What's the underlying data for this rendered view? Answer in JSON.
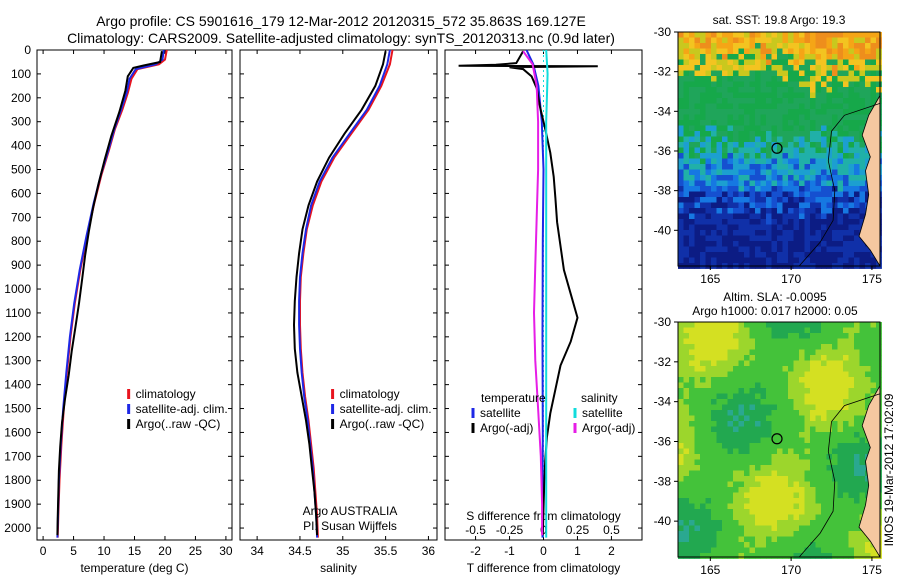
{
  "header": {
    "line1": "Argo profile: CS 5901616_179 12-Mar-2012 20120315_572 35.863S 169.127E",
    "line2": "Climatology: CARS2009. Satellite-adjusted climatology: synTS_20120313.nc (0.9d later)"
  },
  "side_stamp": "IMOS 19-Mar-2012 17:02:09",
  "colors": {
    "red": "#e8141e",
    "blue": "#1e28e6",
    "black": "#000000",
    "cyan": "#12dcdc",
    "magenta": "#e61ee6"
  },
  "chart_data": [
    {
      "id": "temperature",
      "type": "line",
      "xlabel": "temperature (deg C)",
      "ylabel": "",
      "xlim": [
        -1,
        31
      ],
      "ylim": [
        2050,
        0
      ],
      "xticks": [
        0,
        5,
        10,
        15,
        20,
        25,
        30
      ],
      "xticklabels": [
        "0",
        "5",
        "10",
        "15",
        "20",
        "25",
        "30"
      ],
      "yticks": [
        0,
        100,
        200,
        300,
        400,
        500,
        600,
        700,
        800,
        900,
        1000,
        1100,
        1200,
        1300,
        1400,
        1500,
        1600,
        1700,
        1800,
        1900,
        2000
      ],
      "yticklabels": [
        "0",
        "100",
        "200",
        "300",
        "400",
        "500",
        "600",
        "700",
        "800",
        "900",
        "1000",
        "1100",
        "1200",
        "1300",
        "1400",
        "1500",
        "1600",
        "1700",
        "1800",
        "1900",
        "2000"
      ],
      "legend": [
        "climatology",
        "satellite-adj. clim.",
        "Argo(..raw -QC)"
      ],
      "legend_placement": "bottom-center",
      "series": [
        {
          "name": "climatology",
          "color": "#e8141e",
          "points": [
            [
              20.3,
              0
            ],
            [
              20.0,
              40
            ],
            [
              19.0,
              60
            ],
            [
              15.5,
              80
            ],
            [
              14.5,
              120
            ],
            [
              13.9,
              180
            ],
            [
              13.0,
              250
            ],
            [
              11.8,
              330
            ],
            [
              10.8,
              420
            ],
            [
              9.6,
              520
            ],
            [
              8.4,
              640
            ],
            [
              7.2,
              780
            ],
            [
              6.1,
              920
            ],
            [
              5.2,
              1060
            ],
            [
              4.5,
              1200
            ],
            [
              3.9,
              1350
            ],
            [
              3.4,
              1500
            ],
            [
              3.0,
              1650
            ],
            [
              2.7,
              1800
            ],
            [
              2.5,
              1950
            ],
            [
              2.4,
              2040
            ]
          ]
        },
        {
          "name": "satellite-adj. clim.",
          "color": "#1e28e6",
          "points": [
            [
              19.8,
              0
            ],
            [
              19.6,
              40
            ],
            [
              18.5,
              60
            ],
            [
              15.2,
              80
            ],
            [
              14.2,
              120
            ],
            [
              13.7,
              180
            ],
            [
              12.8,
              250
            ],
            [
              11.7,
              330
            ],
            [
              10.7,
              420
            ],
            [
              9.5,
              520
            ],
            [
              8.3,
              640
            ],
            [
              7.1,
              780
            ],
            [
              6.0,
              920
            ],
            [
              5.1,
              1060
            ],
            [
              4.4,
              1200
            ],
            [
              3.8,
              1350
            ],
            [
              3.3,
              1500
            ],
            [
              2.9,
              1650
            ],
            [
              2.6,
              1800
            ],
            [
              2.45,
              1950
            ],
            [
              2.35,
              2040
            ]
          ]
        },
        {
          "name": "Argo(..raw -QC)",
          "color": "#000000",
          "points": [
            [
              19.5,
              5
            ],
            [
              19.2,
              50
            ],
            [
              16.5,
              65
            ],
            [
              14.8,
              75
            ],
            [
              13.9,
              110
            ],
            [
              13.5,
              170
            ],
            [
              12.5,
              260
            ],
            [
              11.2,
              360
            ],
            [
              10.1,
              460
            ],
            [
              9.1,
              560
            ],
            [
              8.2,
              660
            ],
            [
              7.5,
              760
            ],
            [
              6.9,
              860
            ],
            [
              6.4,
              960
            ],
            [
              5.9,
              1060
            ],
            [
              5.3,
              1160
            ],
            [
              4.7,
              1260
            ],
            [
              4.2,
              1360
            ],
            [
              3.6,
              1460
            ],
            [
              3.1,
              1560
            ],
            [
              2.8,
              1660
            ],
            [
              2.6,
              1760
            ],
            [
              2.5,
              1860
            ],
            [
              2.4,
              1960
            ],
            [
              2.35,
              2030
            ]
          ]
        }
      ]
    },
    {
      "id": "salinity",
      "type": "line",
      "xlabel": "salinity",
      "xlim": [
        33.8,
        36.1
      ],
      "ylim": [
        2050,
        0
      ],
      "xticks": [
        34,
        34.5,
        35,
        35.5,
        36
      ],
      "xticklabels": [
        "34",
        "34.5",
        "35",
        "35.5",
        "36"
      ],
      "legend": [
        "climatology",
        "satellite-adj. clim.",
        "Argo(..raw -QC)"
      ],
      "legend_placement": "bottom-center",
      "annotation": [
        "Argo AUSTRALIA",
        "PI: Susan Wijffels"
      ],
      "series": [
        {
          "name": "climatology",
          "color": "#e8141e",
          "points": [
            [
              35.58,
              0
            ],
            [
              35.55,
              60
            ],
            [
              35.45,
              150
            ],
            [
              35.3,
              250
            ],
            [
              35.1,
              350
            ],
            [
              34.9,
              450
            ],
            [
              34.75,
              550
            ],
            [
              34.65,
              650
            ],
            [
              34.58,
              750
            ],
            [
              34.54,
              850
            ],
            [
              34.51,
              950
            ],
            [
              34.5,
              1050
            ],
            [
              34.5,
              1150
            ],
            [
              34.51,
              1250
            ],
            [
              34.53,
              1350
            ],
            [
              34.56,
              1450
            ],
            [
              34.6,
              1550
            ],
            [
              34.63,
              1650
            ],
            [
              34.66,
              1750
            ],
            [
              34.68,
              1850
            ],
            [
              34.7,
              1950
            ],
            [
              34.71,
              2040
            ]
          ]
        },
        {
          "name": "satellite-adj. clim.",
          "color": "#1e28e6",
          "points": [
            [
              35.55,
              0
            ],
            [
              35.52,
              60
            ],
            [
              35.43,
              150
            ],
            [
              35.28,
              250
            ],
            [
              35.08,
              350
            ],
            [
              34.88,
              450
            ],
            [
              34.73,
              550
            ],
            [
              34.63,
              650
            ],
            [
              34.57,
              750
            ],
            [
              34.53,
              850
            ],
            [
              34.5,
              950
            ],
            [
              34.49,
              1050
            ],
            [
              34.49,
              1150
            ],
            [
              34.5,
              1250
            ],
            [
              34.52,
              1350
            ],
            [
              34.55,
              1450
            ],
            [
              34.59,
              1550
            ],
            [
              34.62,
              1650
            ],
            [
              34.65,
              1750
            ],
            [
              34.67,
              1850
            ],
            [
              34.69,
              1950
            ],
            [
              34.7,
              2040
            ]
          ]
        },
        {
          "name": "Argo(..raw -QC)",
          "color": "#000000",
          "points": [
            [
              35.5,
              5
            ],
            [
              35.47,
              60
            ],
            [
              35.38,
              150
            ],
            [
              35.22,
              250
            ],
            [
              35.02,
              350
            ],
            [
              34.84,
              450
            ],
            [
              34.7,
              550
            ],
            [
              34.6,
              650
            ],
            [
              34.53,
              750
            ],
            [
              34.49,
              850
            ],
            [
              34.46,
              950
            ],
            [
              34.44,
              1050
            ],
            [
              34.43,
              1150
            ],
            [
              34.44,
              1250
            ],
            [
              34.47,
              1350
            ],
            [
              34.52,
              1450
            ],
            [
              34.57,
              1550
            ],
            [
              34.61,
              1650
            ],
            [
              34.64,
              1750
            ],
            [
              34.67,
              1850
            ],
            [
              34.69,
              1950
            ],
            [
              34.7,
              2030
            ]
          ]
        }
      ]
    },
    {
      "id": "differences",
      "type": "line",
      "xlabel": "T difference from climatology",
      "xlabel_top": "S difference from climatology",
      "xlim": [
        -2.9,
        2.9
      ],
      "ylim": [
        2050,
        0
      ],
      "xticks": [
        -2,
        -1,
        0,
        1,
        2
      ],
      "xticklabels": [
        "-2",
        "-1",
        "0",
        "1",
        "2"
      ],
      "sticks": [
        -0.5,
        -0.25,
        0,
        0.25,
        0.5
      ],
      "sticklabels": [
        "-0.5",
        "-0.25",
        "0",
        "0.25",
        "0.5"
      ],
      "s_scale": 4,
      "legend_temperature": {
        "title": "temperature",
        "items": [
          "satellite",
          "Argo(-adj)"
        ]
      },
      "legend_salinity": {
        "title": "salinity",
        "items": [
          "satellite",
          "Argo(-adj)"
        ]
      },
      "legend_placement": "bottom-center",
      "series": [
        {
          "name": "satellite",
          "group": "temperature",
          "color": "#1e28e6",
          "points": [
            [
              -0.5,
              0
            ],
            [
              -0.3,
              60
            ],
            [
              -0.15,
              150
            ],
            [
              -0.05,
              300
            ],
            [
              0,
              500
            ],
            [
              -0.02,
              800
            ],
            [
              -0.03,
              1200
            ],
            [
              -0.02,
              1600
            ],
            [
              -0.03,
              2040
            ]
          ]
        },
        {
          "name": "Argo(-adj)",
          "group": "temperature",
          "color": "#000000",
          "points": [
            [
              -0.6,
              5
            ],
            [
              -0.8,
              55
            ],
            [
              -1.4,
              62
            ],
            [
              -2.5,
              66
            ],
            [
              1.6,
              68
            ],
            [
              -1.0,
              72
            ],
            [
              -0.6,
              80
            ],
            [
              -0.35,
              110
            ],
            [
              -0.2,
              160
            ],
            [
              -0.1,
              240
            ],
            [
              0.05,
              330
            ],
            [
              0.2,
              430
            ],
            [
              0.3,
              530
            ],
            [
              0.35,
              620
            ],
            [
              0.4,
              720
            ],
            [
              0.5,
              820
            ],
            [
              0.6,
              920
            ],
            [
              0.8,
              1020
            ],
            [
              1.0,
              1120
            ],
            [
              0.8,
              1220
            ],
            [
              0.5,
              1320
            ],
            [
              0.35,
              1420
            ],
            [
              0.2,
              1520
            ],
            [
              0.1,
              1620
            ],
            [
              0.05,
              1720
            ],
            [
              0.02,
              1820
            ],
            [
              0.0,
              1920
            ],
            [
              -0.02,
              2030
            ]
          ]
        },
        {
          "name": "satellite",
          "group": "salinity",
          "color": "#12dcdc",
          "points": [
            [
              0.02,
              0
            ],
            [
              0.03,
              100
            ],
            [
              0.02,
              300
            ],
            [
              0.02,
              600
            ],
            [
              0.02,
              1000
            ],
            [
              0.02,
              1500
            ],
            [
              0.02,
              2040
            ]
          ]
        },
        {
          "name": "Argo(-adj)",
          "group": "salinity",
          "color": "#e61ee6",
          "points": [
            [
              -0.15,
              5
            ],
            [
              -0.08,
              60
            ],
            [
              -0.05,
              150
            ],
            [
              -0.04,
              300
            ],
            [
              -0.04,
              500
            ],
            [
              -0.05,
              700
            ],
            [
              -0.06,
              900
            ],
            [
              -0.07,
              1100
            ],
            [
              -0.06,
              1300
            ],
            [
              -0.04,
              1500
            ],
            [
              -0.02,
              1700
            ],
            [
              -0.01,
              1900
            ],
            [
              -0.01,
              2030
            ]
          ]
        }
      ]
    },
    {
      "id": "sst_map",
      "type": "heatmap",
      "title": "sat. SST: 19.8 Argo: 19.3",
      "xlim": [
        163,
        175.5
      ],
      "ylim": [
        -41.8,
        -30
      ],
      "xticks": [
        165,
        170,
        175
      ],
      "xticklabels": [
        "165",
        "170",
        "175"
      ],
      "yticks": [
        -30,
        -32,
        -34,
        -36,
        -38,
        -40
      ],
      "yticklabels": [
        "-30",
        "-32",
        "-34",
        "-36",
        "-38",
        "-40"
      ],
      "marker": [
        169.127,
        -35.863
      ]
    },
    {
      "id": "sla_map",
      "type": "heatmap",
      "title": "Altim. SLA: -0.0095",
      "subtitle": "Argo h1000: 0.017 h2000: 0.05",
      "xlim": [
        163,
        175.5
      ],
      "ylim": [
        -41.8,
        -30
      ],
      "xticks": [
        165,
        170,
        175
      ],
      "xticklabels": [
        "165",
        "170",
        "175"
      ],
      "yticks": [
        -30,
        -32,
        -34,
        -36,
        -38,
        -40
      ],
      "yticklabels": [
        "-30",
        "-32",
        "-34",
        "-36",
        "-38",
        "-40"
      ],
      "marker": [
        169.127,
        -35.863
      ]
    }
  ]
}
